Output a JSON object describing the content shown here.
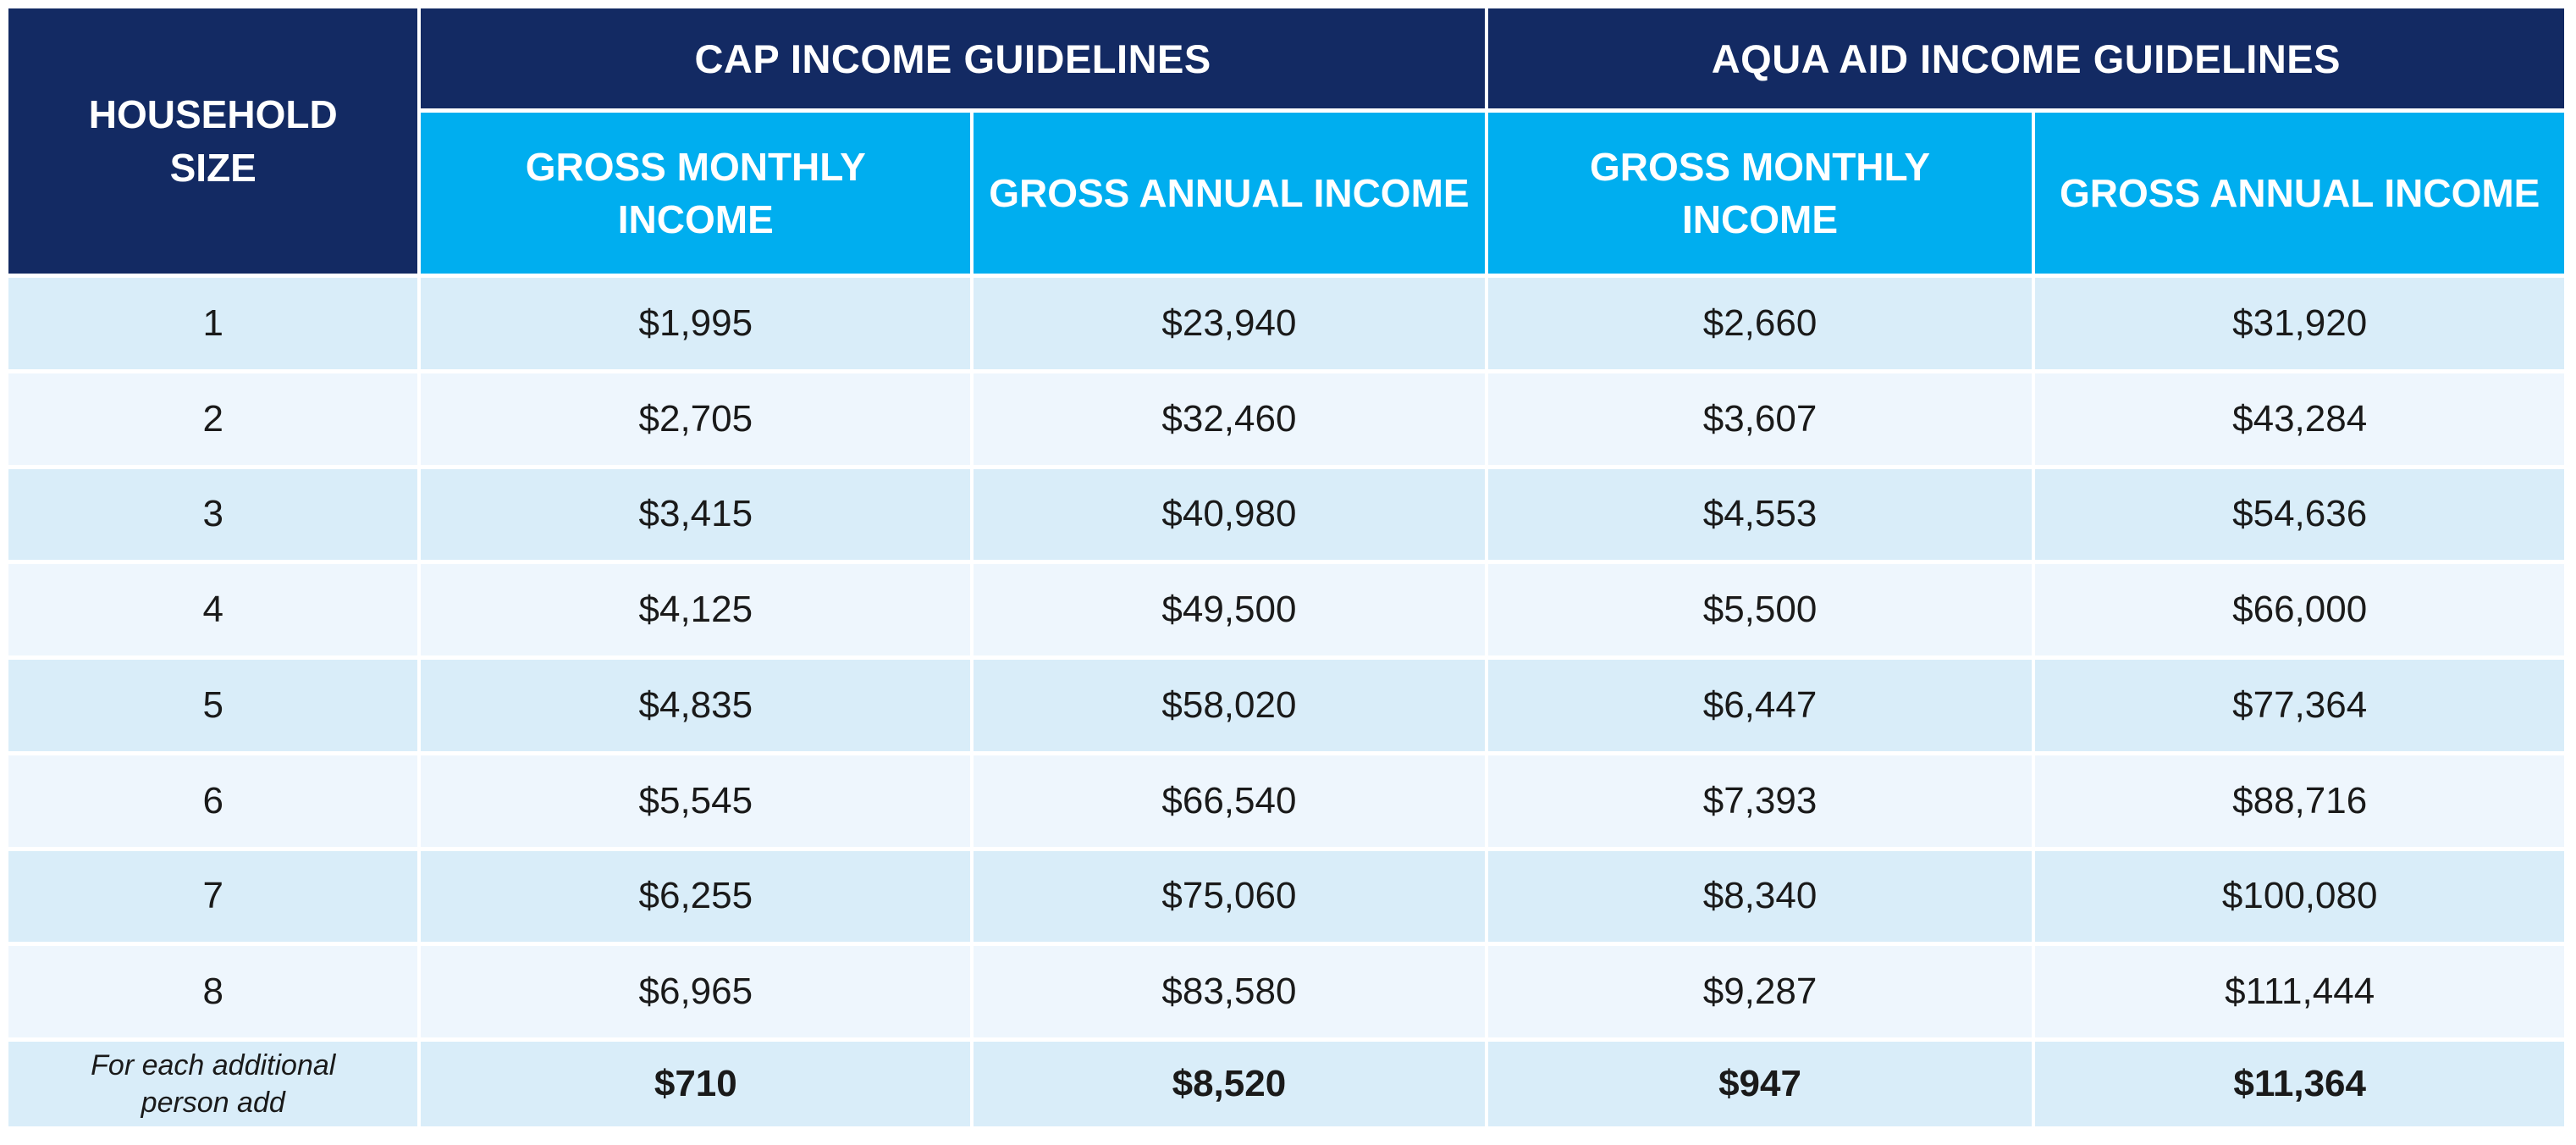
{
  "colors": {
    "navy": "#132A63",
    "cyan": "#00AEEF",
    "row_light": "#D9EDF9",
    "row_lighter": "#EEF6FD",
    "text_dark": "#1A1A1A",
    "header_text": "#FFFFFF",
    "page_bg": "#FFFFFF"
  },
  "table": {
    "headers": {
      "household": "HOUSEHOLD\nSIZE",
      "cap_group": "CAP INCOME GUIDELINES",
      "aqua_group": "AQUA AID INCOME GUIDELINES",
      "cap_gross_monthly": "GROSS MONTHLY\nINCOME",
      "cap_gross_annual": "GROSS ANNUAL INCOME",
      "aqua_gross_monthly": "GROSS MONTHLY\nINCOME",
      "aqua_gross_annual": "GROSS ANNUAL INCOME"
    },
    "rows": [
      {
        "household_size": "1",
        "cap_monthly": "$1,995",
        "cap_annual": "$23,940",
        "aqua_monthly": "$2,660",
        "aqua_annual": "$31,920"
      },
      {
        "household_size": "2",
        "cap_monthly": "$2,705",
        "cap_annual": "$32,460",
        "aqua_monthly": "$3,607",
        "aqua_annual": "$43,284"
      },
      {
        "household_size": "3",
        "cap_monthly": "$3,415",
        "cap_annual": "$40,980",
        "aqua_monthly": "$4,553",
        "aqua_annual": "$54,636"
      },
      {
        "household_size": "4",
        "cap_monthly": "$4,125",
        "cap_annual": "$49,500",
        "aqua_monthly": "$5,500",
        "aqua_annual": "$66,000"
      },
      {
        "household_size": "5",
        "cap_monthly": "$4,835",
        "cap_annual": "$58,020",
        "aqua_monthly": "$6,447",
        "aqua_annual": "$77,364"
      },
      {
        "household_size": "6",
        "cap_monthly": "$5,545",
        "cap_annual": "$66,540",
        "aqua_monthly": "$7,393",
        "aqua_annual": "$88,716"
      },
      {
        "household_size": "7",
        "cap_monthly": "$6,255",
        "cap_annual": "$75,060",
        "aqua_monthly": "$8,340",
        "aqua_annual": "$100,080"
      },
      {
        "household_size": "8",
        "cap_monthly": "$6,965",
        "cap_annual": "$83,580",
        "aqua_monthly": "$9,287",
        "aqua_annual": "$111,444"
      }
    ],
    "footer": {
      "label": "For each additional\nperson add",
      "cap_monthly": "$710",
      "cap_annual": "$8,520",
      "aqua_monthly": "$947",
      "aqua_annual": "$11,364"
    }
  }
}
